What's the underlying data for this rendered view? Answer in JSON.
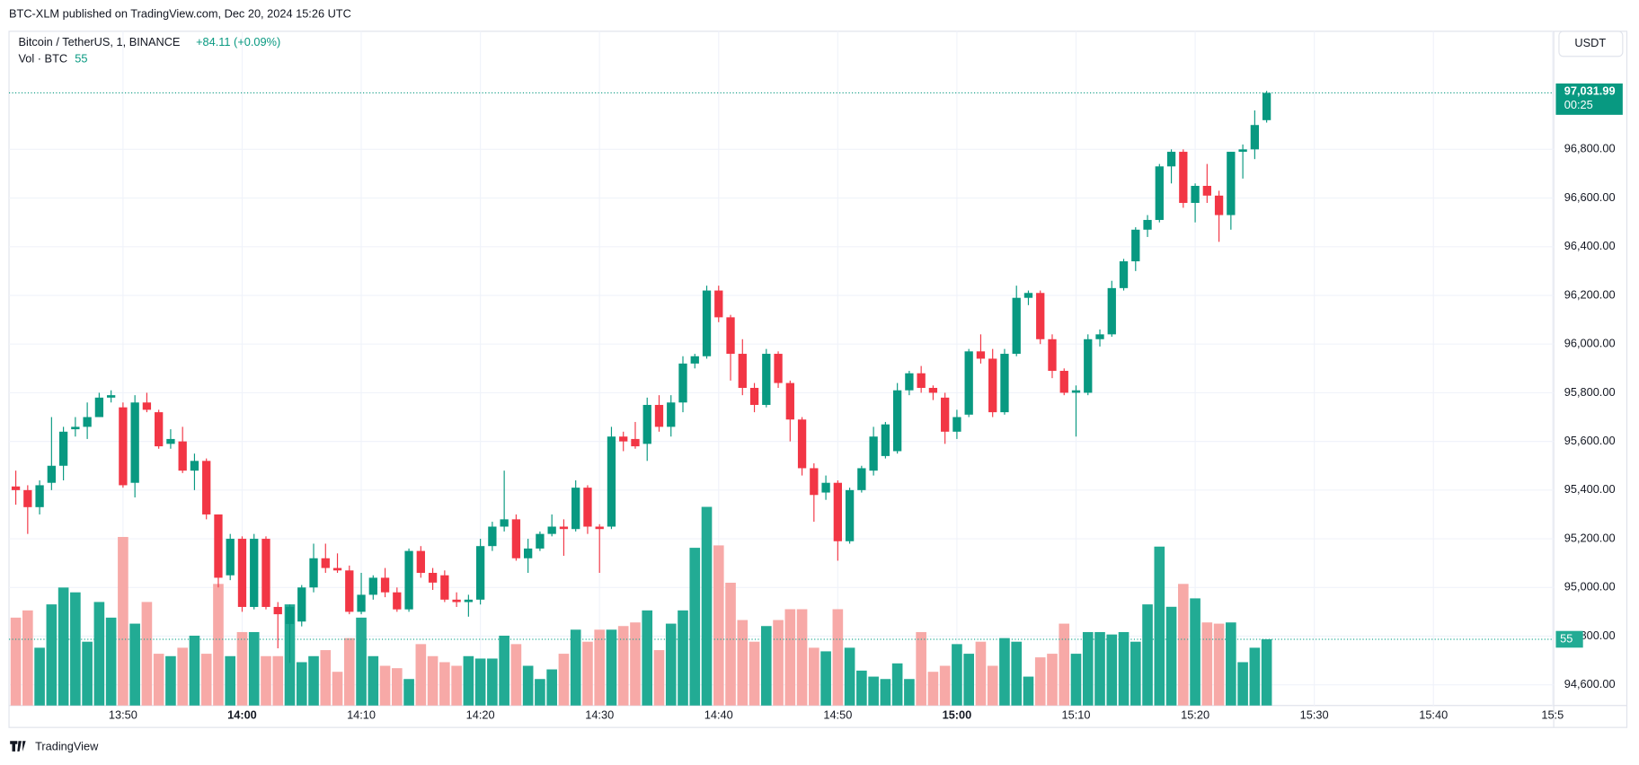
{
  "header": {
    "published": "BTC-XLM published on TradingView.com, Dec 20, 2024 15:26 UTC",
    "brand": "TradingView"
  },
  "chart_data": {
    "type": "candlestick",
    "title": "Bitcoin / TetherUS, 1, BINANCE",
    "change": "+84.11 (+0.09%)",
    "volume_title": "Vol · BTC",
    "currency": "USDT",
    "countdown": "00:25",
    "close_label": "97,031.99",
    "up_color": "#089981",
    "down_color": "#f23645",
    "up_volume_color": "#22ab94",
    "down_volume_color": "#f7a9a7",
    "grid": true,
    "ohlc": [
      [
        95415,
        95480,
        95340,
        95400
      ],
      [
        95400,
        95420,
        95220,
        95330
      ],
      [
        95330,
        95440,
        95300,
        95420
      ],
      [
        95430,
        95700,
        95400,
        95500
      ],
      [
        95500,
        95660,
        95440,
        95640
      ],
      [
        95650,
        95700,
        95620,
        95660
      ],
      [
        95660,
        95760,
        95610,
        95700
      ],
      [
        95700,
        95800,
        95700,
        95780
      ],
      [
        95780,
        95810,
        95760,
        95790
      ],
      [
        95740,
        95760,
        95410,
        95420
      ],
      [
        95430,
        95790,
        95370,
        95760
      ],
      [
        95760,
        95800,
        95720,
        95730
      ],
      [
        95720,
        95730,
        95570,
        95580
      ],
      [
        95590,
        95650,
        95570,
        95610
      ],
      [
        95600,
        95660,
        95470,
        95480
      ],
      [
        95480,
        95550,
        95400,
        95520
      ],
      [
        95520,
        95530,
        95280,
        95300
      ],
      [
        95300,
        95300,
        95000,
        95040
      ],
      [
        95050,
        95220,
        95030,
        95200
      ],
      [
        95200,
        95210,
        94900,
        94920
      ],
      [
        94920,
        95220,
        94910,
        95200
      ],
      [
        95200,
        95210,
        94910,
        94920
      ],
      [
        94920,
        94940,
        94750,
        94890
      ],
      [
        94850,
        94930,
        94690,
        94920
      ],
      [
        94860,
        95010,
        94840,
        95000
      ],
      [
        95000,
        95180,
        94980,
        95120
      ],
      [
        95120,
        95180,
        95060,
        95080
      ],
      [
        95080,
        95140,
        95060,
        95070
      ],
      [
        95070,
        95090,
        94890,
        94900
      ],
      [
        94900,
        95060,
        94890,
        94970
      ],
      [
        94970,
        95050,
        94950,
        95040
      ],
      [
        95040,
        95080,
        94960,
        94980
      ],
      [
        94980,
        95000,
        94900,
        94910
      ],
      [
        94910,
        95160,
        94900,
        95150
      ],
      [
        95150,
        95170,
        95040,
        95060
      ],
      [
        95060,
        95080,
        94990,
        95020
      ],
      [
        95050,
        95070,
        94940,
        94950
      ],
      [
        94950,
        94980,
        94920,
        94940
      ],
      [
        94940,
        94970,
        94880,
        94950
      ],
      [
        94950,
        95200,
        94930,
        95170
      ],
      [
        95170,
        95270,
        95150,
        95250
      ],
      [
        95250,
        95480,
        95230,
        95280
      ],
      [
        95280,
        95300,
        95110,
        95120
      ],
      [
        95120,
        95200,
        95060,
        95160
      ],
      [
        95160,
        95230,
        95150,
        95220
      ],
      [
        95220,
        95300,
        95210,
        95250
      ],
      [
        95250,
        95280,
        95130,
        95240
      ],
      [
        95240,
        95440,
        95230,
        95410
      ],
      [
        95410,
        95420,
        95220,
        95250
      ],
      [
        95250,
        95260,
        95060,
        95240
      ],
      [
        95250,
        95660,
        95240,
        95620
      ],
      [
        95620,
        95640,
        95560,
        95600
      ],
      [
        95610,
        95680,
        95570,
        95580
      ],
      [
        95590,
        95780,
        95520,
        95750
      ],
      [
        95750,
        95790,
        95640,
        95660
      ],
      [
        95660,
        95790,
        95620,
        95760
      ],
      [
        95760,
        95950,
        95720,
        95920
      ],
      [
        95920,
        95960,
        95900,
        95950
      ],
      [
        95950,
        96240,
        95940,
        96220
      ],
      [
        96220,
        96240,
        96090,
        96110
      ],
      [
        96110,
        96120,
        95850,
        95960
      ],
      [
        95960,
        96020,
        95790,
        95820
      ],
      [
        95820,
        95840,
        95720,
        95750
      ],
      [
        95750,
        95980,
        95740,
        95960
      ],
      [
        95960,
        95970,
        95820,
        95840
      ],
      [
        95840,
        95850,
        95600,
        95690
      ],
      [
        95690,
        95700,
        95460,
        95490
      ],
      [
        95490,
        95510,
        95270,
        95380
      ],
      [
        95390,
        95460,
        95360,
        95430
      ],
      [
        95430,
        95440,
        95110,
        95190
      ],
      [
        95190,
        95410,
        95180,
        95400
      ],
      [
        95400,
        95500,
        95390,
        95490
      ],
      [
        95480,
        95660,
        95460,
        95620
      ],
      [
        95540,
        95680,
        95530,
        95670
      ],
      [
        95560,
        95840,
        95550,
        95810
      ],
      [
        95810,
        95890,
        95790,
        95880
      ],
      [
        95880,
        95910,
        95800,
        95820
      ],
      [
        95820,
        95830,
        95770,
        95800
      ],
      [
        95780,
        95800,
        95590,
        95640
      ],
      [
        95640,
        95730,
        95610,
        95700
      ],
      [
        95710,
        95980,
        95700,
        95970
      ],
      [
        95970,
        96040,
        95920,
        95940
      ],
      [
        95940,
        95980,
        95700,
        95720
      ],
      [
        95720,
        95980,
        95710,
        95960
      ],
      [
        95960,
        96240,
        95950,
        96190
      ],
      [
        96190,
        96220,
        96160,
        96210
      ],
      [
        96210,
        96220,
        96000,
        96020
      ],
      [
        96020,
        96040,
        95860,
        95890
      ],
      [
        95890,
        95900,
        95790,
        95800
      ],
      [
        95800,
        95830,
        95620,
        95810
      ],
      [
        95800,
        96040,
        95790,
        96020
      ],
      [
        96020,
        96060,
        95990,
        96040
      ],
      [
        96040,
        96260,
        96030,
        96230
      ],
      [
        96230,
        96350,
        96220,
        96340
      ],
      [
        96340,
        96480,
        96300,
        96470
      ],
      [
        96470,
        96530,
        96440,
        96510
      ],
      [
        96510,
        96740,
        96500,
        96730
      ],
      [
        96730,
        96800,
        96660,
        96790
      ],
      [
        96790,
        96800,
        96560,
        96580
      ],
      [
        96580,
        96660,
        96500,
        96650
      ],
      [
        96650,
        96740,
        96580,
        96610
      ],
      [
        96610,
        96630,
        96420,
        96530
      ],
      [
        96530,
        96790,
        96470,
        96790
      ],
      [
        96790,
        96820,
        96680,
        96800
      ],
      [
        96800,
        96960,
        96760,
        96900
      ],
      [
        96920,
        97040,
        96910,
        97031.99
      ]
    ],
    "volume": [
      73,
      79,
      48,
      84,
      98,
      94,
      53,
      86,
      73,
      140,
      68,
      86,
      43,
      41,
      48,
      58,
      43,
      101,
      41,
      61,
      61,
      41,
      41,
      84,
      36,
      41,
      46,
      28,
      56,
      73,
      41,
      33,
      31,
      22,
      51,
      41,
      36,
      33,
      41,
      39,
      39,
      58,
      51,
      33,
      22,
      30,
      43,
      63,
      53,
      63,
      63,
      66,
      69,
      79,
      46,
      68,
      79,
      131,
      165,
      133,
      102,
      71,
      53,
      66,
      71,
      80,
      80,
      48,
      45,
      80,
      48,
      29,
      24,
      22,
      35,
      22,
      61,
      28,
      33,
      51,
      43,
      53,
      33,
      56,
      53,
      24,
      40,
      43,
      68,
      43,
      61,
      61,
      59,
      61,
      53,
      84,
      132,
      82,
      101,
      89,
      69,
      68,
      69,
      36,
      48,
      55
    ],
    "xlim": [
      -0.57,
      129.1
    ],
    "xticks": [
      {
        "value": 9,
        "label": "13:50"
      },
      {
        "value": 19,
        "label": "14:00"
      },
      {
        "value": 29,
        "label": "14:10"
      },
      {
        "value": 39,
        "label": "14:20"
      },
      {
        "value": 49,
        "label": "14:30"
      },
      {
        "value": 59,
        "label": "14:40"
      },
      {
        "value": 69,
        "label": "14:50"
      },
      {
        "value": 79,
        "label": "15:00"
      },
      {
        "value": 89,
        "label": "15:10"
      },
      {
        "value": 99,
        "label": "15:20"
      },
      {
        "value": 109,
        "label": "15:30"
      },
      {
        "value": 119,
        "label": "15:40"
      },
      {
        "value": 129,
        "label": "15:5"
      }
    ],
    "ylim": [
      94515,
      97285
    ],
    "yticks": [
      {
        "value": 94600,
        "label": "94,600.00"
      },
      {
        "value": 94800,
        "label": "94,800.00"
      },
      {
        "value": 95000,
        "label": "95,000.00"
      },
      {
        "value": 95200,
        "label": "95,200.00"
      },
      {
        "value": 95400,
        "label": "95,400.00"
      },
      {
        "value": 95600,
        "label": "95,600.00"
      },
      {
        "value": 95800,
        "label": "95,800.00"
      },
      {
        "value": 96000,
        "label": "96,000.00"
      },
      {
        "value": 96200,
        "label": "96,200.00"
      },
      {
        "value": 96400,
        "label": "96,400.00"
      },
      {
        "value": 96600,
        "label": "96,600.00"
      },
      {
        "value": 96800,
        "label": "96,800.00"
      }
    ],
    "volume_ylim": [
      0,
      560
    ]
  }
}
